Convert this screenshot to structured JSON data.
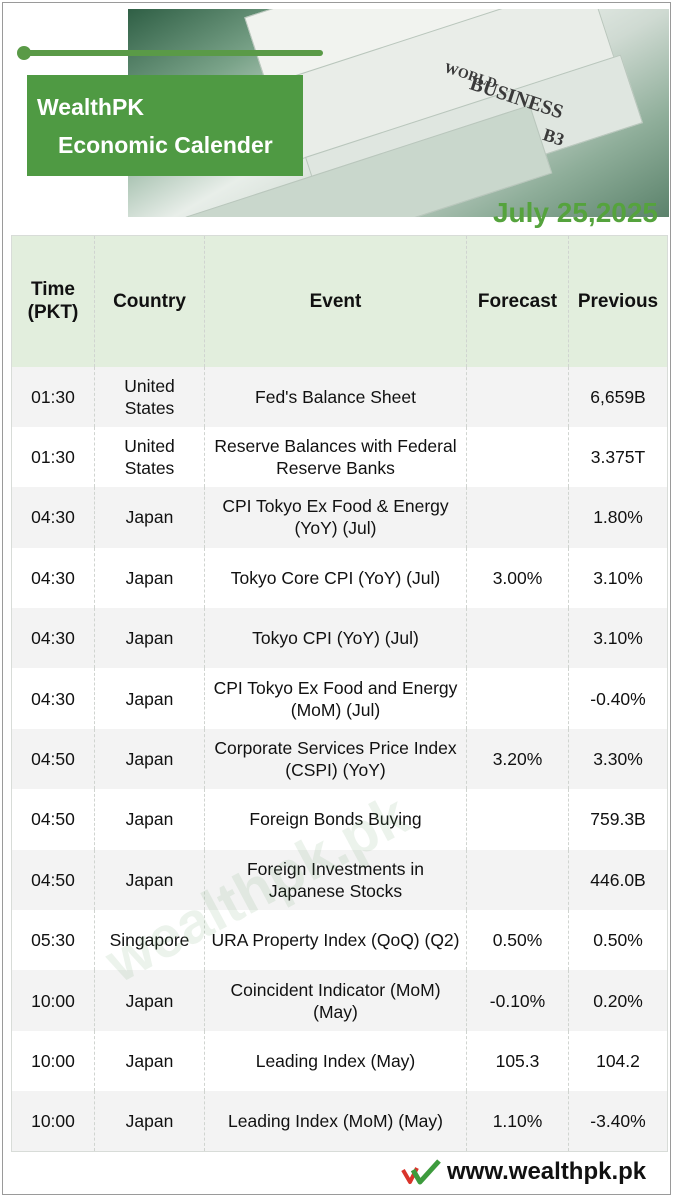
{
  "header": {
    "brand": "WealthPK",
    "subtitle": "Economic Calender",
    "date": "July 25,2025",
    "photo_words": [
      "WORLD",
      "BUSINESS",
      "B3"
    ]
  },
  "table": {
    "columns": {
      "time": "Time\n(PKT)",
      "country": "Country",
      "event": "Event",
      "forecast": "Forecast",
      "previous": "Previous"
    },
    "rows": [
      {
        "time": "01:30",
        "country": "United States",
        "event": "Fed's Balance Sheet",
        "forecast": "",
        "previous": "6,659B"
      },
      {
        "time": "01:30",
        "country": "United States",
        "event": "Reserve Balances with Federal Reserve Banks",
        "forecast": "",
        "previous": "3.375T"
      },
      {
        "time": "04:30",
        "country": "Japan",
        "event": "CPI Tokyo Ex Food & Energy (YoY) (Jul)",
        "forecast": "",
        "previous": "1.80%"
      },
      {
        "time": "04:30",
        "country": "Japan",
        "event": "Tokyo Core CPI (YoY) (Jul)",
        "forecast": "3.00%",
        "previous": "3.10%"
      },
      {
        "time": "04:30",
        "country": "Japan",
        "event": "Tokyo CPI (YoY) (Jul)",
        "forecast": "",
        "previous": "3.10%"
      },
      {
        "time": "04:30",
        "country": "Japan",
        "event": "CPI Tokyo Ex Food and Energy (MoM) (Jul)",
        "forecast": "",
        "previous": "-0.40%"
      },
      {
        "time": "04:50",
        "country": "Japan",
        "event": "Corporate Services Price Index (CSPI) (YoY)",
        "forecast": "3.20%",
        "previous": "3.30%"
      },
      {
        "time": "04:50",
        "country": "Japan",
        "event": "Foreign Bonds Buying",
        "forecast": "",
        "previous": "759.3B"
      },
      {
        "time": "04:50",
        "country": "Japan",
        "event": "Foreign Investments in Japanese Stocks",
        "forecast": "",
        "previous": "446.0B"
      },
      {
        "time": "05:30",
        "country": "Singapore",
        "event": "URA Property Index (QoQ) (Q2)",
        "forecast": "0.50%",
        "previous": "0.50%"
      },
      {
        "time": "10:00",
        "country": "Japan",
        "event": "Coincident Indicator (MoM) (May)",
        "forecast": "-0.10%",
        "previous": "0.20%"
      },
      {
        "time": "10:00",
        "country": "Japan",
        "event": "Leading Index (May)",
        "forecast": "105.3",
        "previous": "104.2"
      },
      {
        "time": "10:00",
        "country": "Japan",
        "event": "Leading Index (MoM) (May)",
        "forecast": "1.10%",
        "previous": "-3.40%"
      }
    ]
  },
  "watermark": "wealthpk.pk",
  "footer": {
    "url": "www.wealthpk.pk",
    "logo_icon": "wealthpk-check-logo-icon"
  },
  "colors": {
    "brand_green": "#4f9a43",
    "date_green": "#55a33d",
    "header_row": "#e2eedd",
    "stripe": "#f3f3f3"
  }
}
